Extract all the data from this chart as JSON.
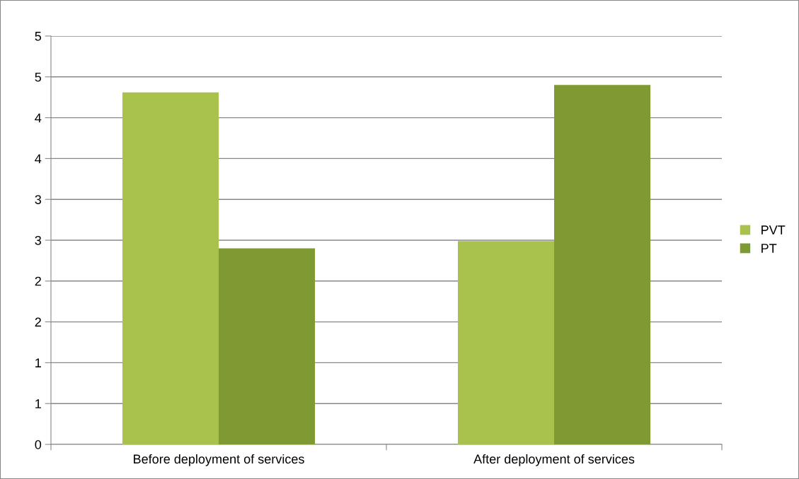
{
  "chart_data": {
    "type": "bar",
    "categories": [
      "Before deployment of services",
      "After deployment of services"
    ],
    "series": [
      {
        "name": "PVT",
        "color": "#a9c24d",
        "values": [
          4.31,
          2.49
        ]
      },
      {
        "name": "PT",
        "color": "#7f9a32",
        "values": [
          2.4,
          4.4
        ]
      }
    ],
    "ylim": [
      0,
      5
    ],
    "yticks": [
      0,
      {
        "value": 0.5,
        "label": "1"
      },
      {
        "value": 1,
        "label": "1"
      },
      {
        "value": 1.5,
        "label": "2"
      },
      {
        "value": 2,
        "label": "2"
      },
      {
        "value": 2.5,
        "label": "3"
      },
      {
        "value": 3,
        "label": "3"
      },
      {
        "value": 3.5,
        "label": "4"
      },
      {
        "value": 4,
        "label": "4"
      },
      {
        "value": 4.5,
        "label": "5"
      },
      {
        "value": 5,
        "label": "5"
      }
    ],
    "grid": "y",
    "legend": "right"
  }
}
